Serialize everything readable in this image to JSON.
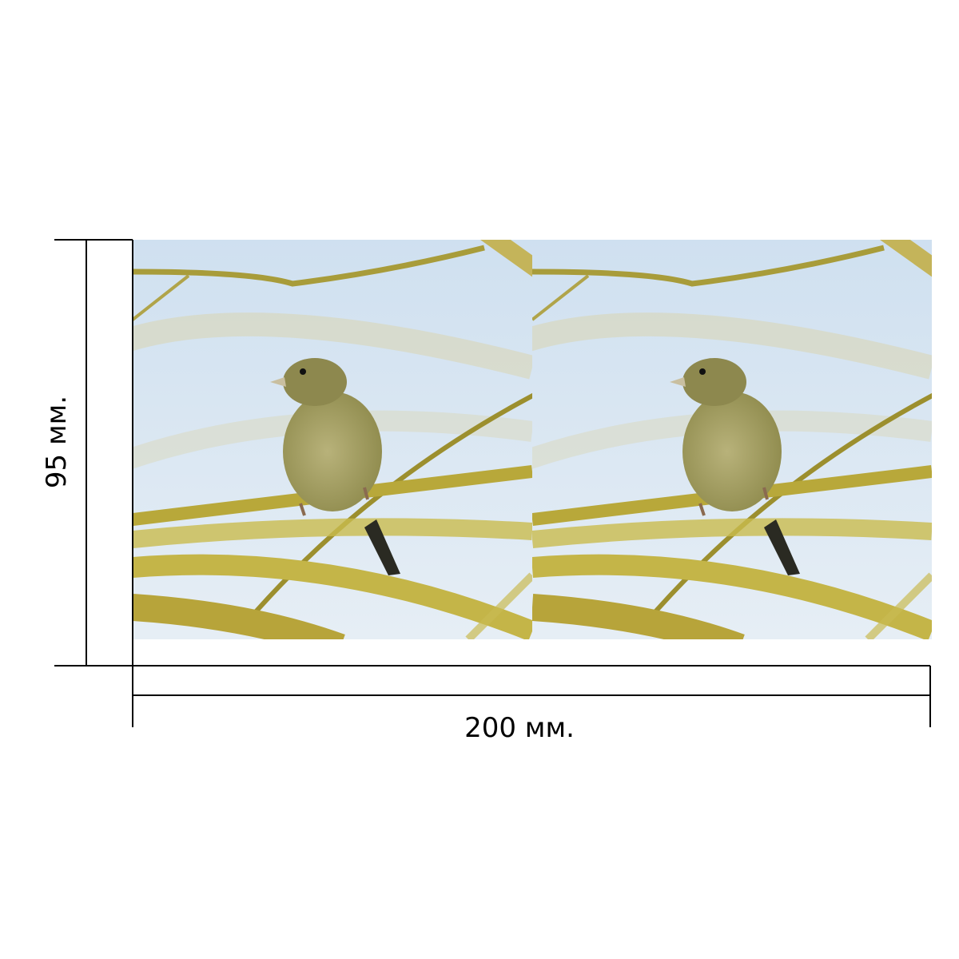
{
  "dimensions": {
    "width_label": "200 мм.",
    "height_label": "95 мм."
  }
}
